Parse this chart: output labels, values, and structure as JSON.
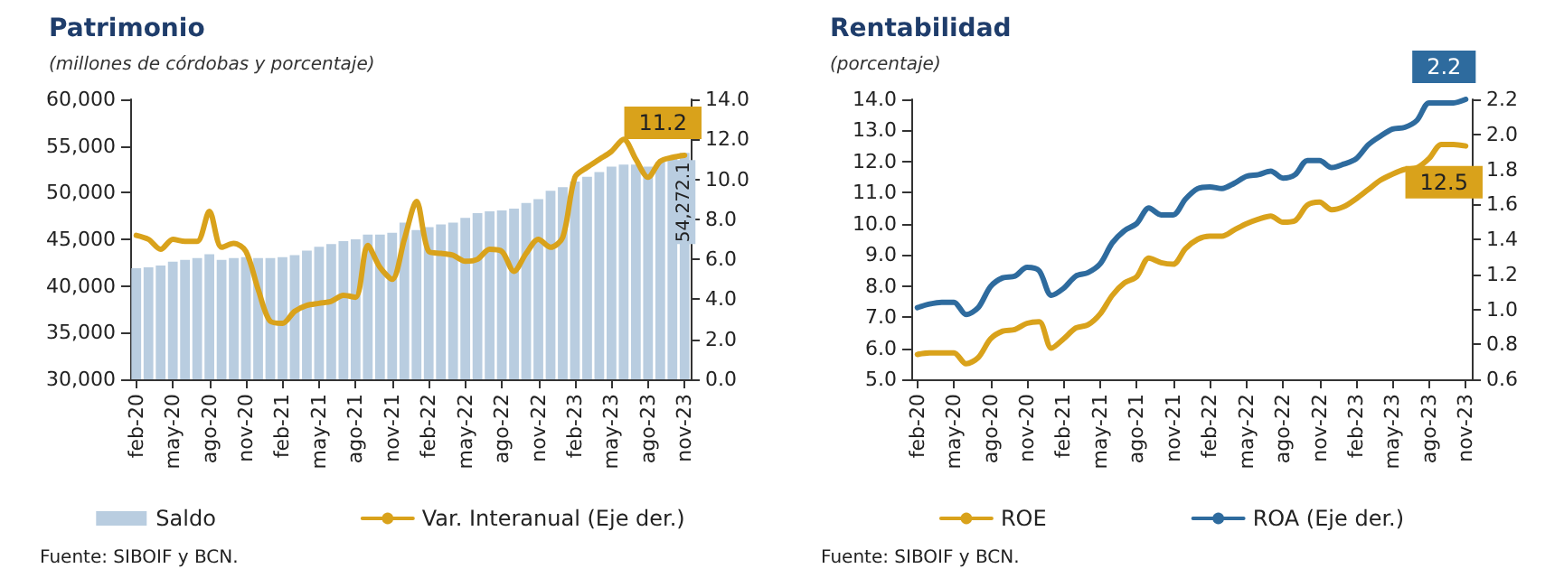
{
  "chart_data": [
    {
      "type": "bar",
      "title": "Patrimonio",
      "subtitle": "(millones de córdobas y porcentaje)",
      "annotations": [
        "Fuente: SIBOIF y BCN."
      ],
      "categories": [
        "feb-20",
        null,
        null,
        "may-20",
        null,
        null,
        "ago-20",
        null,
        null,
        "nov-20",
        null,
        null,
        "feb-21",
        null,
        null,
        "may-21",
        null,
        null,
        "ago-21",
        null,
        null,
        "nov-21",
        null,
        null,
        "feb-22",
        null,
        null,
        "may-22",
        null,
        null,
        "ago-22",
        null,
        null,
        "nov-22",
        null,
        null,
        "feb-23",
        null,
        null,
        "may-23",
        null,
        null,
        "ago-23",
        null,
        null,
        "nov-23"
      ],
      "series": [
        {
          "name": "Saldo",
          "type": "bar",
          "color": "#b9cde0",
          "values": [
            41900,
            42000,
            42200,
            42600,
            42800,
            43000,
            43400,
            42800,
            43000,
            43100,
            43000,
            43000,
            43100,
            43300,
            43800,
            44200,
            44500,
            44800,
            45000,
            45500,
            45500,
            45700,
            46800,
            46000,
            46300,
            46600,
            46800,
            47300,
            47800,
            48000,
            48100,
            48300,
            48900,
            49300,
            50200,
            50600,
            51200,
            51700,
            52200,
            52800,
            53000,
            53000,
            52800,
            53300,
            53800,
            54272.1
          ],
          "value_labels": [
            null,
            null,
            null,
            null,
            null,
            null,
            null,
            null,
            null,
            null,
            null,
            null,
            null,
            null,
            null,
            null,
            null,
            null,
            null,
            null,
            null,
            null,
            null,
            null,
            null,
            null,
            null,
            null,
            null,
            null,
            null,
            null,
            null,
            null,
            null,
            null,
            null,
            null,
            null,
            null,
            null,
            null,
            null,
            null,
            null,
            "54,272.1"
          ]
        },
        {
          "name": "Var. Interanual (Eje der.)",
          "type": "line",
          "axis": "y2",
          "color": "#d9a21b",
          "values": [
            7.2,
            7.0,
            6.5,
            7.0,
            6.9,
            6.9,
            8.4,
            6.6,
            6.8,
            6.4,
            4.5,
            2.9,
            2.8,
            3.4,
            3.7,
            3.8,
            3.9,
            4.2,
            4.1,
            6.7,
            5.6,
            5.0,
            7.0,
            8.9,
            6.4,
            6.3,
            6.2,
            5.9,
            6.0,
            6.5,
            6.4,
            5.4,
            6.3,
            7.0,
            6.6,
            7.1,
            10.1,
            10.6,
            11.0,
            11.4,
            12.0,
            11.0,
            10.1,
            10.9,
            11.1,
            11.2
          ],
          "value_labels": [
            null,
            null,
            null,
            null,
            null,
            null,
            null,
            null,
            null,
            null,
            null,
            null,
            null,
            null,
            null,
            null,
            null,
            null,
            null,
            null,
            null,
            null,
            null,
            null,
            null,
            null,
            null,
            null,
            null,
            null,
            null,
            null,
            null,
            null,
            null,
            null,
            null,
            null,
            null,
            null,
            null,
            null,
            null,
            null,
            null,
            "11.2"
          ]
        }
      ],
      "ylim": [
        30000,
        60000
      ],
      "yticks": [
        {
          "value": 30000,
          "label": "30,000"
        },
        {
          "value": 35000,
          "label": "35,000"
        },
        {
          "value": 40000,
          "label": "40,000"
        },
        {
          "value": 45000,
          "label": "45,000"
        },
        {
          "value": 50000,
          "label": "50,000"
        },
        {
          "value": 55000,
          "label": "55,000"
        },
        {
          "value": 60000,
          "label": "60,000"
        }
      ],
      "y2lim": [
        0,
        14
      ],
      "y2ticks": [
        {
          "value": 0,
          "label": "0.0"
        },
        {
          "value": 2,
          "label": "2.0"
        },
        {
          "value": 4,
          "label": "4.0"
        },
        {
          "value": 6,
          "label": "6.0"
        },
        {
          "value": 8,
          "label": "8.0"
        },
        {
          "value": 10,
          "label": "10.0"
        },
        {
          "value": 12,
          "label": "12.0"
        },
        {
          "value": 14,
          "label": "14.0"
        }
      ],
      "grid": false,
      "legend": "bottom",
      "marker": "none"
    },
    {
      "type": "line",
      "title": "Rentabilidad",
      "subtitle": "(porcentaje)",
      "annotations": [
        "Fuente: SIBOIF y BCN."
      ],
      "categories": [
        "feb-20",
        null,
        null,
        "may-20",
        null,
        null,
        "ago-20",
        null,
        null,
        "nov-20",
        null,
        null,
        "feb-21",
        null,
        null,
        "may-21",
        null,
        null,
        "ago-21",
        null,
        null,
        "nov-21",
        null,
        null,
        "feb-22",
        null,
        null,
        "may-22",
        null,
        null,
        "ago-22",
        null,
        null,
        "nov-22",
        null,
        null,
        "feb-23",
        null,
        null,
        "may-23",
        null,
        null,
        "ago-23",
        null,
        null,
        "nov-23"
      ],
      "series": [
        {
          "name": "ROE",
          "color": "#d9a21b",
          "values": [
            5.8,
            5.85,
            5.85,
            5.85,
            5.5,
            5.7,
            6.3,
            6.55,
            6.6,
            6.8,
            6.85,
            6.0,
            6.3,
            6.65,
            6.75,
            7.1,
            7.7,
            8.1,
            8.3,
            8.9,
            8.75,
            8.7,
            9.2,
            9.5,
            9.6,
            9.6,
            9.8,
            10.0,
            10.15,
            10.25,
            10.05,
            10.1,
            10.6,
            10.7,
            10.45,
            10.55,
            10.8,
            11.1,
            11.4,
            11.6,
            11.75,
            11.8,
            12.1,
            12.55,
            12.55,
            12.5
          ],
          "value_labels": [
            null,
            null,
            null,
            null,
            null,
            null,
            null,
            null,
            null,
            null,
            null,
            null,
            null,
            null,
            null,
            null,
            null,
            null,
            null,
            null,
            null,
            null,
            null,
            null,
            null,
            null,
            null,
            null,
            null,
            null,
            null,
            null,
            null,
            null,
            null,
            null,
            null,
            null,
            null,
            null,
            null,
            null,
            null,
            null,
            null,
            "12.5"
          ]
        },
        {
          "name": "ROA (Eje der.)",
          "axis": "y2",
          "color": "#2e6b9e",
          "values": [
            1.01,
            1.03,
            1.04,
            1.04,
            0.97,
            1.01,
            1.13,
            1.18,
            1.19,
            1.24,
            1.22,
            1.08,
            1.12,
            1.19,
            1.21,
            1.26,
            1.38,
            1.45,
            1.49,
            1.58,
            1.54,
            1.54,
            1.63,
            1.69,
            1.7,
            1.69,
            1.72,
            1.76,
            1.77,
            1.79,
            1.75,
            1.77,
            1.85,
            1.85,
            1.81,
            1.83,
            1.86,
            1.94,
            1.99,
            2.03,
            2.04,
            2.08,
            2.18,
            2.18,
            2.18,
            2.2
          ],
          "value_labels": [
            null,
            null,
            null,
            null,
            null,
            null,
            null,
            null,
            null,
            null,
            null,
            null,
            null,
            null,
            null,
            null,
            null,
            null,
            null,
            null,
            null,
            null,
            null,
            null,
            null,
            null,
            null,
            null,
            null,
            null,
            null,
            null,
            null,
            null,
            null,
            null,
            null,
            null,
            null,
            null,
            null,
            null,
            null,
            null,
            null,
            "2.2"
          ]
        }
      ],
      "ylim": [
        5,
        14
      ],
      "yticks": [
        {
          "value": 5,
          "label": "5.0"
        },
        {
          "value": 6,
          "label": "6.0"
        },
        {
          "value": 7,
          "label": "7.0"
        },
        {
          "value": 8,
          "label": "8.0"
        },
        {
          "value": 9,
          "label": "9.0"
        },
        {
          "value": 10,
          "label": "10.0"
        },
        {
          "value": 11,
          "label": "11.0"
        },
        {
          "value": 12,
          "label": "12.0"
        },
        {
          "value": 13,
          "label": "13.0"
        },
        {
          "value": 14,
          "label": "14.0"
        }
      ],
      "y2lim": [
        0.6,
        2.2
      ],
      "y2ticks": [
        {
          "value": 0.6,
          "label": "0.6"
        },
        {
          "value": 0.8,
          "label": "0.8"
        },
        {
          "value": 1,
          "label": "1.0"
        },
        {
          "value": 1.2,
          "label": "1.2"
        },
        {
          "value": 1.4,
          "label": "1.4"
        },
        {
          "value": 1.6,
          "label": "1.6"
        },
        {
          "value": 1.8,
          "label": "1.8"
        },
        {
          "value": 2,
          "label": "2.0"
        },
        {
          "value": 2.2,
          "label": "2.2"
        }
      ],
      "grid": false,
      "legend": "bottom",
      "marker": "none"
    }
  ]
}
